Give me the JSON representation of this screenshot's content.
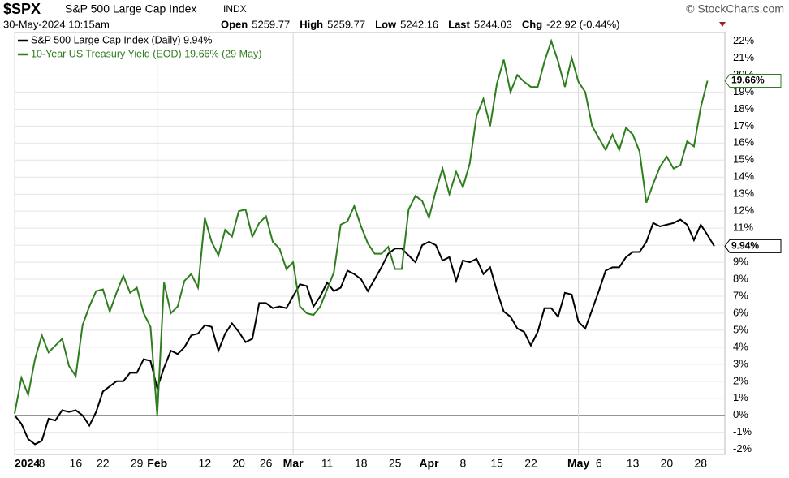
{
  "header": {
    "symbol": "$SPX",
    "name": "S&P 500 Large Cap Index",
    "exchange": "INDX",
    "credit": "© StockCharts.com",
    "datetime": "30-May-2024 10:15am",
    "quote": [
      {
        "label": "Open",
        "value": "5259.77"
      },
      {
        "label": "High",
        "value": "5259.77"
      },
      {
        "label": "Low",
        "value": "5242.16"
      },
      {
        "label": "Last",
        "value": "5244.03"
      },
      {
        "label": "Chg",
        "value": "-22.92 (-0.44%)"
      }
    ]
  },
  "chart_data": {
    "type": "line",
    "categories": [
      "2024",
      null,
      null,
      null,
      "8",
      null,
      null,
      null,
      null,
      "16",
      null,
      null,
      null,
      "22",
      null,
      null,
      null,
      null,
      "29",
      null,
      null,
      "Feb",
      null,
      null,
      null,
      null,
      null,
      null,
      "12",
      null,
      null,
      null,
      null,
      "20",
      null,
      null,
      null,
      "26",
      null,
      null,
      null,
      "Mar",
      null,
      null,
      null,
      null,
      "11",
      null,
      null,
      null,
      null,
      "18",
      null,
      null,
      null,
      null,
      "25",
      null,
      null,
      null,
      null,
      "Apr",
      null,
      null,
      null,
      null,
      "8",
      null,
      null,
      null,
      null,
      "15",
      null,
      null,
      null,
      null,
      "22",
      null,
      null,
      null,
      null,
      null,
      null,
      "May",
      null,
      null,
      "6",
      null,
      null,
      null,
      null,
      "13",
      null,
      null,
      null,
      null,
      "20",
      null,
      null,
      null,
      null,
      "28",
      null,
      null
    ],
    "series": [
      {
        "name": "S&P 500 Large Cap Index (Daily) 9.94%",
        "color": "#000000",
        "last_label": "9.94%",
        "values": [
          0,
          -0.5,
          -1.4,
          -1.7,
          -1.5,
          -0.2,
          -0.3,
          0.3,
          0.2,
          0.3,
          0,
          -0.6,
          0.2,
          1.4,
          1.7,
          2,
          2,
          2.5,
          2.5,
          3.3,
          3.2,
          1.6,
          2.8,
          3.8,
          3.6,
          4,
          4.7,
          4.8,
          5.3,
          5.2,
          3.8,
          4.8,
          5.4,
          4.9,
          4.3,
          4.5,
          6.6,
          6.6,
          6.3,
          6.4,
          6.3,
          7,
          7.7,
          7.6,
          6.4,
          7,
          7.8,
          7.3,
          7.5,
          8.5,
          8.3,
          8,
          7.3,
          8,
          8.7,
          9.5,
          9.8,
          9.8,
          9.4,
          9,
          10,
          10.2,
          10,
          9.1,
          9.3,
          7.9,
          9.1,
          9,
          9.2,
          8.3,
          8.7,
          7.3,
          6.1,
          5.8,
          5.1,
          4.9,
          4.1,
          4.9,
          6.3,
          6.3,
          5.8,
          7.2,
          7.1,
          5.5,
          5.1,
          6.2,
          7.3,
          8.5,
          8.7,
          8.7,
          9.3,
          9.6,
          9.6,
          10.2,
          11.3,
          11.1,
          11.2,
          11.3,
          11.5,
          11.2,
          10.3,
          11.2,
          10.6,
          9.94
        ]
      },
      {
        "name": "10-Year US Treasury Yield (EOD) 19.66% (29 May)",
        "color": "#2e7d1e",
        "last_label": "19.66%",
        "values": [
          0.1,
          2.2,
          1.2,
          3.3,
          4.7,
          3.7,
          4.1,
          4.5,
          2.9,
          2.3,
          5.3,
          6.4,
          7.3,
          7.4,
          6.1,
          7.2,
          8.2,
          7.2,
          7.5,
          6,
          5.2,
          0,
          7.8,
          6,
          6.4,
          7.9,
          8.3,
          7.5,
          11.6,
          10.2,
          9.4,
          10.9,
          10.5,
          12,
          12.1,
          10.5,
          11.3,
          11.7,
          10.2,
          9.8,
          8.6,
          9,
          6.4,
          6,
          5.9,
          6.4,
          7.4,
          8.4,
          11.2,
          11.4,
          12.3,
          11.1,
          10.1,
          9.5,
          9.5,
          9.9,
          8.6,
          8.6,
          12.1,
          12.9,
          12.6,
          11.6,
          13.2,
          14.5,
          13,
          14.3,
          13.4,
          14.8,
          17.6,
          18.6,
          17,
          19.5,
          20.9,
          19,
          20,
          19.6,
          19.3,
          19.3,
          20.8,
          22,
          20.8,
          19.3,
          21,
          19.6,
          19,
          17,
          16.3,
          15.6,
          16.5,
          15.6,
          16.9,
          16.5,
          15.5,
          12.5,
          13.6,
          14.6,
          15.2,
          14.5,
          14.7,
          16.1,
          15.8,
          18.1,
          19.66,
          null
        ]
      }
    ],
    "ylim": [
      -2.3,
      22.5
    ],
    "yticks": [
      {
        "value": -2,
        "label": "-2%"
      },
      {
        "value": -1,
        "label": "-1%"
      },
      {
        "value": 0,
        "label": "0%"
      },
      {
        "value": 1,
        "label": "1%"
      },
      {
        "value": 2,
        "label": "2%"
      },
      {
        "value": 3,
        "label": "3%"
      },
      {
        "value": 4,
        "label": "4%"
      },
      {
        "value": 5,
        "label": "5%"
      },
      {
        "value": 6,
        "label": "6%"
      },
      {
        "value": 7,
        "label": "7%"
      },
      {
        "value": 8,
        "label": "8%"
      },
      {
        "value": 9,
        "label": "9%"
      },
      {
        "value": 10,
        "label": "10%"
      },
      {
        "value": 11,
        "label": "11%"
      },
      {
        "value": 12,
        "label": "12%"
      },
      {
        "value": 13,
        "label": "13%"
      },
      {
        "value": 14,
        "label": "14%"
      },
      {
        "value": 15,
        "label": "15%"
      },
      {
        "value": 16,
        "label": "16%"
      },
      {
        "value": 17,
        "label": "17%"
      },
      {
        "value": 18,
        "label": "18%"
      },
      {
        "value": 19,
        "label": "19%"
      },
      {
        "value": 20,
        "label": "20%"
      },
      {
        "value": 21,
        "label": "21%"
      },
      {
        "value": 22,
        "label": "22%"
      }
    ],
    "grid": true
  }
}
